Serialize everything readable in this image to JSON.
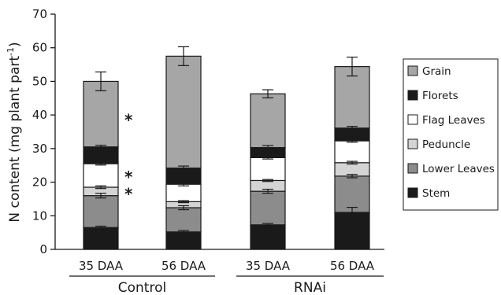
{
  "chart_data": {
    "type": "bar",
    "stacked": true,
    "ylabel": "N content (mg plant part",
    "ylabel_sup": "-1",
    "ylabel_close": ")",
    "ylim": [
      0,
      70
    ],
    "yticks": [
      "0",
      "10",
      "20",
      "30",
      "40",
      "50",
      "60",
      "70"
    ],
    "grid": false,
    "legend_position": "right",
    "categories": [
      "35 DAA",
      "56 DAA",
      "35 DAA",
      "56 DAA"
    ],
    "groups": [
      {
        "label": "Control",
        "categories": [
          0,
          1
        ]
      },
      {
        "label": "RNAi",
        "categories": [
          2,
          3
        ]
      }
    ],
    "series": [
      {
        "name": "Stem",
        "color": "#1a1a1a",
        "values": [
          6.5,
          5.2,
          7.3,
          11.0
        ],
        "errors": [
          0.4,
          0.4,
          0.4,
          1.5
        ]
      },
      {
        "name": "Lower Leaves",
        "color": "#8c8c8c",
        "values": [
          9.5,
          7.2,
          10.0,
          10.8
        ],
        "errors": [
          0.7,
          0.6,
          0.6,
          0.5
        ]
      },
      {
        "name": "Peduncle",
        "color": "#d4d4d4",
        "values": [
          2.5,
          1.8,
          3.2,
          4.0
        ],
        "errors": [
          0.4,
          0.3,
          0.3,
          0.4
        ]
      },
      {
        "name": "Flag Leaves",
        "color": "#ffffff",
        "values": [
          7.0,
          5.2,
          6.8,
          6.5
        ],
        "errors": [
          0.4,
          0.5,
          0.4,
          0.4
        ]
      },
      {
        "name": "Florets",
        "color": "#1a1a1a",
        "values": [
          5.0,
          4.8,
          3.0,
          3.8
        ],
        "errors": [
          0.5,
          0.6,
          0.6,
          0.5
        ]
      },
      {
        "name": "Grain",
        "color": "#a6a6a6",
        "values": [
          19.5,
          33.3,
          16.0,
          18.3
        ],
        "errors": [
          2.8,
          2.8,
          1.2,
          2.8
        ]
      }
    ],
    "annotations": [
      {
        "category": 0,
        "y": 39,
        "text": "*"
      },
      {
        "category": 0,
        "y": 22,
        "text": "*"
      },
      {
        "category": 0,
        "y": 17,
        "text": "*"
      }
    ],
    "legend_order": [
      "Grain",
      "Florets",
      "Flag Leaves",
      "Peduncle",
      "Lower Leaves",
      "Stem"
    ]
  }
}
